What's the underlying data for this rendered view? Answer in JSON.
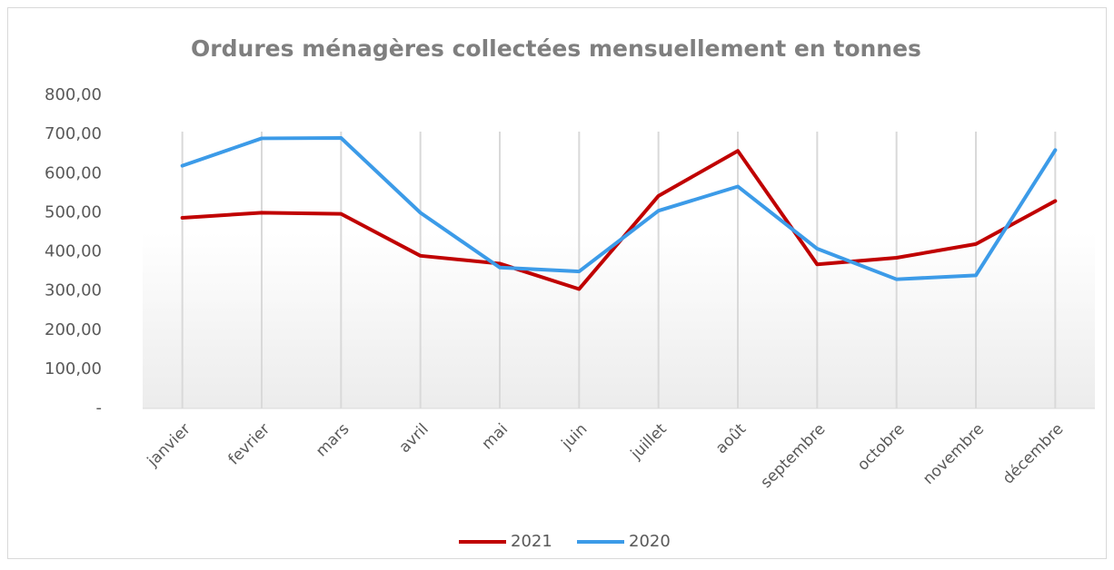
{
  "chart_data": {
    "type": "line",
    "title": "Ordures ménagères collectées mensuellement en tonnes",
    "categories": [
      "janvier",
      "fevrier",
      "mars",
      "avril",
      "mai",
      "juin",
      "juillet",
      "août",
      "septembre",
      "octobre",
      "novembre",
      "décembre"
    ],
    "series": [
      {
        "name": "2021",
        "color": "#c00000",
        "values": [
          487,
          500,
          497,
          390,
          370,
          305,
          543,
          658,
          368,
          385,
          420,
          530
        ]
      },
      {
        "name": "2020",
        "color": "#3c9be8",
        "values": [
          620,
          690,
          691,
          500,
          360,
          350,
          505,
          567,
          408,
          330,
          340,
          660
        ]
      }
    ],
    "ylim": [
      0,
      800
    ],
    "yticks": [
      {
        "value": 0,
        "label": "-"
      },
      {
        "value": 100,
        "label": "100,00"
      },
      {
        "value": 200,
        "label": "200,00"
      },
      {
        "value": 300,
        "label": "300,00"
      },
      {
        "value": 400,
        "label": "400,00"
      },
      {
        "value": 500,
        "label": "500,00"
      },
      {
        "value": 600,
        "label": "600,00"
      },
      {
        "value": 700,
        "label": "700,00"
      },
      {
        "value": 800,
        "label": "800,00"
      }
    ],
    "grid": "vertical",
    "legend": "bottom"
  }
}
